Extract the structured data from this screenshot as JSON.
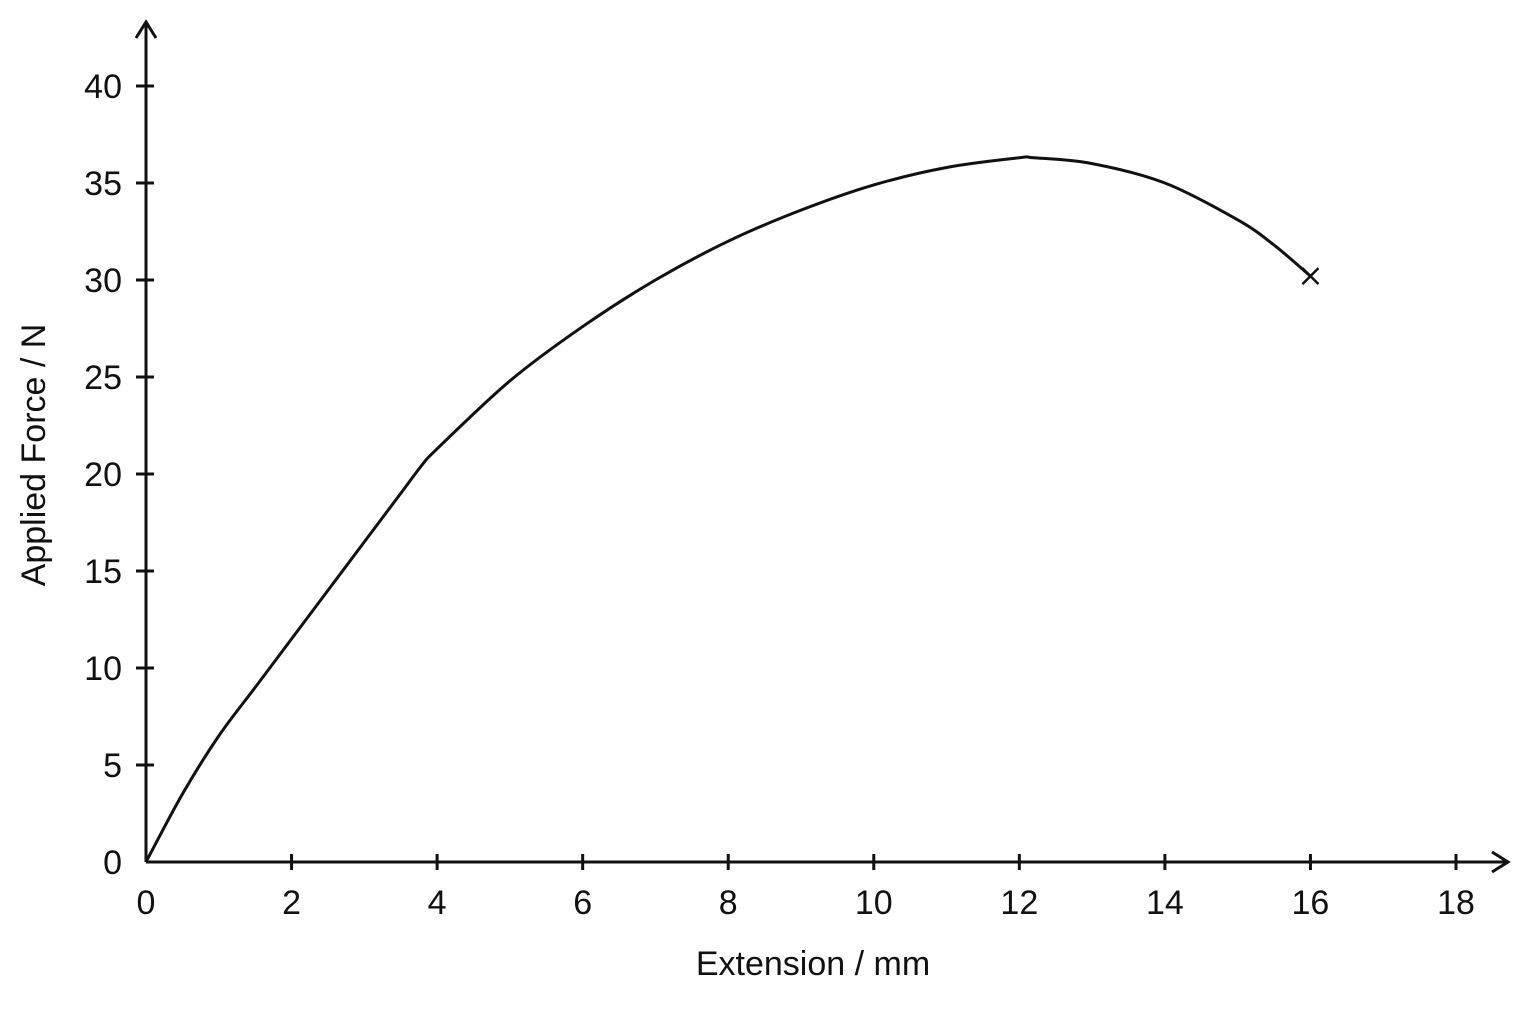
{
  "chart_data": {
    "type": "line",
    "title": "",
    "xlabel": "Extension / mm",
    "ylabel": "Applied Force / N",
    "xlim": [
      0,
      18
    ],
    "ylim": [
      0,
      40
    ],
    "xticks": [
      "0",
      "2",
      "4",
      "6",
      "8",
      "10",
      "12",
      "14",
      "16",
      "18"
    ],
    "yticks": [
      "0",
      "5",
      "10",
      "15",
      "20",
      "25",
      "30",
      "35",
      "40"
    ],
    "grid": false,
    "series": [
      {
        "x": [
          0,
          0.5,
          1,
          1.5,
          2,
          2.5,
          3,
          3.5,
          3.8,
          4,
          5,
          6,
          7,
          8,
          9,
          10,
          11,
          12,
          12.2,
          13,
          14,
          15,
          15.5,
          16
        ],
        "y": [
          0,
          3.5,
          6.5,
          9.0,
          11.5,
          14.0,
          16.5,
          19.0,
          20.5,
          21.3,
          24.8,
          27.6,
          30.0,
          32.0,
          33.6,
          34.9,
          35.8,
          36.3,
          36.3,
          36.0,
          35.0,
          33.1,
          31.8,
          30.2
        ]
      }
    ],
    "annotations": [
      {
        "type": "cross",
        "x": 16,
        "y": 30.2
      }
    ]
  }
}
